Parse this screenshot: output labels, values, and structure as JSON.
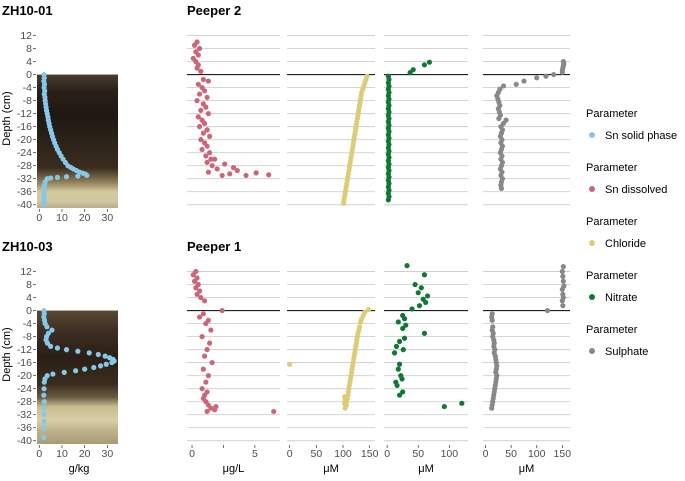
{
  "chart_data": {
    "type": "scatter",
    "ylabel": "Depth (cm)",
    "ylim": [
      -41,
      14
    ],
    "yticks": [
      12,
      8,
      4,
      0,
      -4,
      -8,
      -12,
      -16,
      -20,
      -24,
      -28,
      -32,
      -36,
      -40
    ],
    "colors": {
      "Sn solid phase": "#87c8e8",
      "Sn dissolved": "#cc6677",
      "Chloride": "#ddcc77",
      "Nitrate": "#117733",
      "Sulphate": "#888888"
    },
    "legend": {
      "placement": "right",
      "title": "Parameter",
      "entries": [
        {
          "label": "Sn solid phase",
          "key": "Sn solid phase"
        },
        {
          "label": "Sn dissolved",
          "key": "Sn dissolved"
        },
        {
          "label": "Chloride",
          "key": "Chloride"
        },
        {
          "label": "Nitrate",
          "key": "Nitrate"
        },
        {
          "label": "Sulphate",
          "key": "Sulphate"
        }
      ]
    },
    "x_axes": [
      {
        "label": "g/kg",
        "xlim": [
          -1,
          36
        ],
        "ticks": [
          "0",
          "10",
          "20",
          "30"
        ],
        "tick_values": [
          0,
          10,
          20,
          30
        ]
      },
      {
        "label": "μg/L",
        "xlim": [
          -0.4,
          7
        ],
        "ticks": [
          "0",
          "",
          "5"
        ],
        "tick_values": [
          0,
          2.5,
          5
        ]
      },
      {
        "label": "μM",
        "xlim": [
          -5,
          160
        ],
        "ticks": [
          "0",
          "50",
          "100",
          "150"
        ],
        "tick_values": [
          0,
          50,
          100,
          150
        ]
      },
      {
        "label": "μM",
        "xlim": [
          -5,
          130
        ],
        "ticks": [
          "0",
          "50",
          "100"
        ],
        "tick_values": [
          0,
          50,
          100
        ]
      },
      {
        "label": "μM",
        "xlim": [
          -5,
          165
        ],
        "ticks": [
          "0",
          "50",
          "100",
          "150"
        ],
        "tick_values": [
          0,
          50,
          100,
          150
        ]
      }
    ],
    "rows": [
      {
        "core_title": "ZH10-01",
        "peeper_title": "Peeper 2",
        "sediment_top": 0,
        "panels": [
          {
            "param": "Sn solid phase",
            "x": [
              2.1,
              2.2,
              2.0,
              2.3,
              2.1,
              2.4,
              2.2,
              2.5,
              2.6,
              2.8,
              3.0,
              3.2,
              3.5,
              3.8,
              4.0,
              4.3,
              4.6,
              5.0,
              5.4,
              5.8,
              6.3,
              6.8,
              7.4,
              8.0,
              8.8,
              9.6,
              10.5,
              11.5,
              12.6,
              13.8,
              15.0,
              16.4,
              17.8,
              19.2,
              20.4,
              21.0,
              17.0,
              12.0,
              8.0,
              5.0,
              3.5,
              2.6,
              2.3,
              2.1,
              2.2,
              2.0,
              2.1,
              2.2,
              2.0
            ],
            "y": [
              0,
              -1,
              -2,
              -3,
              -4,
              -5,
              -6,
              -7,
              -8,
              -9,
              -10,
              -11,
              -12,
              -13,
              -14,
              -15,
              -16,
              -17,
              -18,
              -19,
              -20,
              -21,
              -22,
              -23,
              -24,
              -25,
              -26,
              -27,
              -28,
              -28.5,
              -29,
              -29.5,
              -30,
              -30.3,
              -30.6,
              -31,
              -31.2,
              -31.4,
              -31.6,
              -31.8,
              -32,
              -33,
              -34,
              -35,
              -36,
              -37,
              -38,
              -39,
              -40
            ]
          },
          {
            "param": "Sn dissolved",
            "x": [
              0.4,
              0.2,
              0.6,
              0.3,
              0.5,
              0.1,
              0.3,
              0.5,
              0.4,
              0.7,
              0.9,
              1.3,
              0.5,
              0.8,
              1.0,
              0.6,
              1.2,
              0.4,
              0.9,
              1.1,
              0.7,
              1.3,
              0.5,
              0.8,
              1.0,
              0.6,
              1.2,
              0.9,
              1.4,
              0.7,
              1.0,
              1.2,
              0.8,
              1.4,
              1.1,
              1.5,
              1.2,
              1.6,
              2.0,
              1.3,
              2.4,
              3.0,
              3.6,
              4.3,
              5.1,
              6.1,
              3.3,
              2.6,
              1.8
            ],
            "y": [
              10,
              9,
              8,
              7,
              6,
              5,
              4,
              3,
              2,
              1,
              -1.5,
              -2,
              -3,
              -4,
              -5,
              -6,
              -7,
              -8,
              -9,
              -10,
              -11,
              -12,
              -13,
              -14,
              -15,
              -16,
              -17,
              -18,
              -19,
              -20,
              -21,
              -22,
              -23,
              -24,
              -25,
              -26,
              -27,
              -28,
              -29,
              -30,
              -31,
              -30.5,
              -29.5,
              -31,
              -30.2,
              -30.8,
              -28.6,
              -27.5,
              -26
            ]
          },
          {
            "param": "Chloride",
            "x": [
              145,
              143,
              141,
              139,
              137,
              135,
              134,
              133,
              132,
              131,
              130,
              129,
              128,
              127,
              126,
              125,
              124,
              123,
              122,
              121,
              120,
              119,
              118,
              117,
              116,
              115,
              114,
              113,
              112,
              111,
              110,
              109,
              108,
              107,
              106,
              105,
              104,
              103,
              102,
              101
            ],
            "y": [
              -0.5,
              -1.5,
              -2.5,
              -3.5,
              -4.5,
              -5.5,
              -6.5,
              -7.5,
              -8.5,
              -9.5,
              -10.5,
              -11.5,
              -12.5,
              -13.5,
              -14.5,
              -15.5,
              -16.5,
              -17.5,
              -18.5,
              -19.5,
              -20.5,
              -21.5,
              -22.5,
              -23.5,
              -24.5,
              -25.5,
              -26.5,
              -27.5,
              -28.5,
              -29.5,
              -30.5,
              -31.5,
              -32.5,
              -33.5,
              -34.5,
              -35.5,
              -36.5,
              -37.5,
              -38.5,
              -39.5
            ]
          },
          {
            "param": "Nitrate",
            "x": [
              68,
              60,
              42,
              37,
              2,
              3,
              2,
              3,
              2,
              3,
              2,
              3,
              2,
              3,
              2,
              3,
              2,
              3,
              2,
              3,
              2,
              3,
              2,
              3,
              2,
              3,
              2,
              3,
              2,
              3,
              2,
              3,
              2,
              3,
              2,
              3,
              2,
              3,
              2,
              3,
              2,
              3,
              2
            ],
            "y": [
              3.8,
              3,
              1.5,
              0.6,
              -0.5,
              -1.5,
              -2.5,
              -3.5,
              -4.5,
              -5.5,
              -6.5,
              -7.5,
              -8.5,
              -9.5,
              -10.5,
              -11.5,
              -12.5,
              -13.5,
              -14.5,
              -15.5,
              -16.5,
              -17.5,
              -18.5,
              -19.5,
              -20.5,
              -21.5,
              -22.5,
              -23.5,
              -24.5,
              -25.5,
              -26.5,
              -27.5,
              -28.5,
              -29.5,
              -30.5,
              -31.5,
              -32.5,
              -33.5,
              -34.5,
              -35.5,
              -36.5,
              -37.5,
              -38.5
            ]
          },
          {
            "param": "Sulphate",
            "x": [
              152,
              153,
              152,
              151,
              150,
              150,
              133,
              118,
              100,
              75,
              60,
              35,
              28,
              25,
              22,
              24,
              26,
              28,
              25,
              27,
              29,
              26,
              40,
              35,
              30,
              33,
              31,
              29,
              32,
              30,
              33,
              31,
              29,
              32,
              30,
              33,
              31,
              29,
              32,
              30,
              33,
              31,
              30,
              31
            ],
            "y": [
              4,
              3.3,
              2.7,
              2,
              1.3,
              0.7,
              0,
              -0.5,
              -1,
              -2,
              -3,
              -3.5,
              -4.5,
              -5.5,
              -6.5,
              -7.5,
              -8.5,
              -9.5,
              -10.5,
              -11.5,
              -12.5,
              -13.5,
              -14,
              -15,
              -16,
              -17,
              -18,
              -19,
              -20,
              -21,
              -22,
              -23,
              -24,
              -25,
              -26,
              -27,
              -28,
              -29,
              -30,
              -31,
              -32,
              -33,
              -34,
              -35
            ]
          }
        ]
      },
      {
        "core_title": "ZH10-03",
        "peeper_title": "Peeper 1",
        "sediment_top": 0,
        "panels": [
          {
            "param": "Sn solid phase",
            "x": [
              2.1,
              2.2,
              2.0,
              2.3,
              2.6,
              3.4,
              5.6,
              4.0,
              3.2,
              3.0,
              3.6,
              5.0,
              8.0,
              12.0,
              17.0,
              22.0,
              26.0,
              29.0,
              31.0,
              32.5,
              33.0,
              32.0,
              29.5,
              27.0,
              24.0,
              20.0,
              16.0,
              11.0,
              6.0,
              3.5,
              2.5,
              2.2,
              2.1,
              2.0,
              2.2,
              2.1,
              2.0,
              2.2,
              2.1,
              2.0
            ],
            "y": [
              0,
              -1,
              -2,
              -3,
              -4,
              -5,
              -6,
              -7,
              -8,
              -9,
              -10,
              -11,
              -11.5,
              -12,
              -12.5,
              -13,
              -13.5,
              -14,
              -14.5,
              -15,
              -15.5,
              -16,
              -16.5,
              -17,
              -17.5,
              -18,
              -18.5,
              -19,
              -19.5,
              -20,
              -21,
              -22,
              -24,
              -26,
              -28,
              -30,
              -32,
              -34,
              -36,
              -39
            ]
          },
          {
            "param": "Sn dissolved",
            "x": [
              0.3,
              0.1,
              0.4,
              0.2,
              0.5,
              0.3,
              0.6,
              0.4,
              0.7,
              1.0,
              2.4,
              0.9,
              0.6,
              1.3,
              1.1,
              1.5,
              0.8,
              1.4,
              1.2,
              1.0,
              1.6,
              0.9,
              1.3,
              1.1,
              0.8,
              1.2,
              1.0,
              0.9,
              1.1,
              1.3,
              1.5,
              1.8,
              1.2,
              1.9,
              6.5
            ],
            "y": [
              12,
              11,
              10,
              9,
              8,
              7,
              6,
              5,
              4,
              3,
              0,
              -1,
              -2,
              -3,
              -4,
              -6,
              -8,
              -10,
              -12,
              -14,
              -16,
              -18,
              -20,
              -22,
              -24,
              -25,
              -26,
              -27,
              -28,
              -29,
              -30,
              -30.5,
              -31,
              -29.5,
              -31
            ]
          },
          {
            "param": "Chloride",
            "x": [
              148,
              141,
              138,
              135,
              133,
              131,
              130,
              128,
              127,
              126,
              125,
              124,
              123,
              122,
              121,
              120,
              119,
              118,
              117,
              116,
              115,
              114,
              113,
              112,
              111,
              110,
              109,
              108,
              107,
              106,
              105,
              104,
              103,
              104,
              103,
              0
            ],
            "y": [
              0.3,
              -0.5,
              -1.5,
              -2.5,
              -3.5,
              -5,
              -6,
              -7,
              -8,
              -9,
              -10,
              -11,
              -12,
              -13,
              -14,
              -15,
              -16,
              -17,
              -18,
              -19,
              -20,
              -21,
              -22,
              -23,
              -24,
              -25,
              -26,
              -27,
              -28,
              -29,
              -29.5,
              -30,
              -28.5,
              -27.5,
              -26.5,
              -16.5
            ]
          },
          {
            "param": "Nitrate",
            "x": [
              32,
              60,
              45,
              55,
              50,
              65,
              58,
              62,
              52,
              40,
              25,
              28,
              18,
              30,
              25,
              60,
              28,
              20,
              15,
              26,
              12,
              20,
              18,
              22,
              24,
              14,
              16,
              25,
              20,
              92,
              120
            ],
            "y": [
              13.8,
              11,
              8,
              7,
              5.5,
              4.5,
              3.5,
              2.5,
              1.5,
              0.5,
              -1.5,
              -2.5,
              -3.5,
              -4.5,
              -5.5,
              -7,
              -8.5,
              -9.5,
              -11,
              -12,
              -13,
              -16.5,
              -18,
              -20,
              -21,
              -22,
              -23,
              -25,
              -26,
              -29.5,
              -28.5
            ]
          },
          {
            "param": "Sulphate",
            "x": [
              152,
              150,
              151,
              152,
              153,
              150,
              151,
              152,
              150,
              151,
              121,
              13,
              12,
              13,
              14,
              13,
              15,
              14,
              16,
              17,
              16,
              18,
              17,
              19,
              20,
              21,
              22,
              21,
              20,
              22,
              21,
              20,
              19,
              18,
              17,
              16,
              15,
              14,
              13,
              12
            ],
            "y": [
              13.5,
              12,
              10.5,
              9,
              7.5,
              6.5,
              5,
              4,
              3,
              1.5,
              0,
              -1,
              -2,
              -3,
              -5,
              -6,
              -7,
              -8,
              -9,
              -10,
              -11,
              -12,
              -13,
              -14,
              -15,
              -16,
              -17,
              -18,
              -19,
              -20,
              -21,
              -22,
              -23,
              -24,
              -25,
              -26,
              -27,
              -28,
              -29,
              -30
            ]
          }
        ]
      }
    ]
  }
}
